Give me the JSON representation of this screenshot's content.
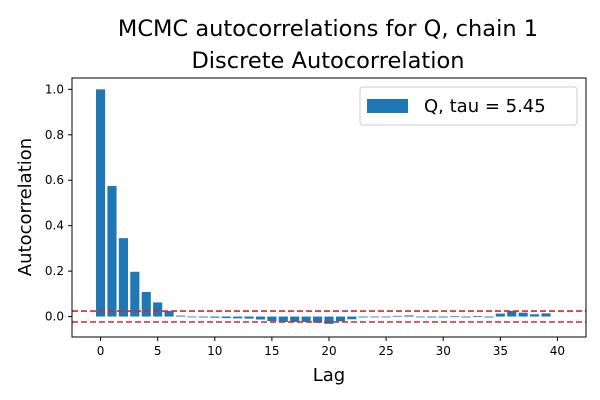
{
  "chart_data": {
    "type": "bar",
    "title": "MCMC autocorrelations for Q, chain 1",
    "subtitle": "Discrete Autocorrelation",
    "xlabel": "Lag",
    "ylabel": "Autocorrelation",
    "xlim": [
      -2.5,
      42.5
    ],
    "ylim": [
      -0.09,
      1.05
    ],
    "xticks": [
      0,
      5,
      10,
      15,
      20,
      25,
      30,
      35,
      40
    ],
    "yticks": [
      0.0,
      0.2,
      0.4,
      0.6,
      0.8,
      1.0
    ],
    "ytick_labels": [
      "0.0",
      "0.2",
      "0.4",
      "0.6",
      "0.8",
      "1.0"
    ],
    "grid": false,
    "legend_position": "top-right",
    "series": [
      {
        "name": "Q, tau = 5.45",
        "color": "#1f77b4",
        "x": [
          0,
          1,
          2,
          3,
          4,
          5,
          6,
          7,
          8,
          9,
          10,
          11,
          12,
          13,
          14,
          15,
          16,
          17,
          18,
          19,
          20,
          21,
          22,
          23,
          24,
          25,
          26,
          27,
          28,
          29,
          30,
          31,
          32,
          33,
          34,
          35,
          36,
          37,
          38,
          39
        ],
        "values": [
          1.0,
          0.575,
          0.345,
          0.197,
          0.108,
          0.062,
          0.025,
          0.004,
          -0.002,
          -0.004,
          -0.005,
          -0.007,
          -0.008,
          -0.009,
          -0.013,
          -0.02,
          -0.024,
          -0.024,
          -0.024,
          -0.027,
          -0.032,
          -0.021,
          -0.012,
          -0.004,
          -0.002,
          -0.002,
          0.003,
          0.005,
          -0.002,
          -0.004,
          -0.004,
          0.001,
          -0.004,
          0.002,
          -0.004,
          0.013,
          0.025,
          0.017,
          0.01,
          0.014
        ]
      }
    ],
    "reference_lines": [
      {
        "y": 0.024,
        "color": "#d62728",
        "style": "dashed"
      },
      {
        "y": -0.024,
        "color": "#d62728",
        "style": "dashed"
      }
    ]
  }
}
